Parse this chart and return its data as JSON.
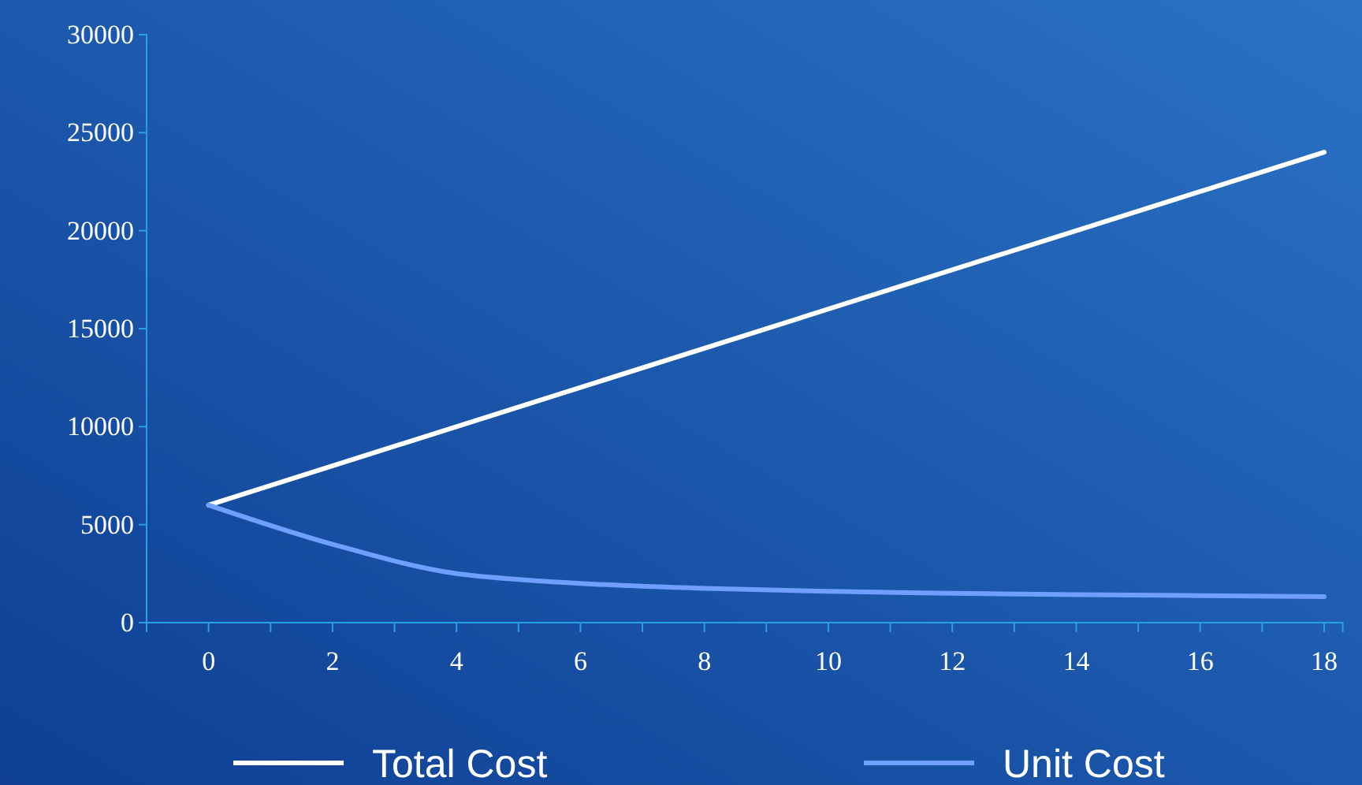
{
  "chart_data": {
    "type": "line",
    "x": [
      0,
      2,
      4,
      5,
      6,
      8,
      10,
      12,
      14,
      16,
      18
    ],
    "series": [
      {
        "name": "Total Cost",
        "color": "#ffffff",
        "x": [
          0,
          18
        ],
        "values": [
          6000,
          24000
        ]
      },
      {
        "name": "Unit Cost",
        "color": "#6fa0ff",
        "values": [
          6000,
          4000,
          2500,
          2200,
          2000,
          1750,
          1600,
          1500,
          1430,
          1380,
          1330
        ]
      }
    ],
    "xlim": [
      -1,
      18.3
    ],
    "xticks": [
      {
        "value": -1,
        "label": null
      },
      0,
      {
        "value": 1,
        "label": null
      },
      2,
      {
        "value": 3,
        "label": null
      },
      4,
      {
        "value": 5,
        "label": null
      },
      6,
      {
        "value": 7,
        "label": null
      },
      8,
      {
        "value": 9,
        "label": null
      },
      10,
      {
        "value": 11,
        "label": null
      },
      12,
      {
        "value": 13,
        "label": null
      },
      14,
      {
        "value": 15,
        "label": null
      },
      16,
      {
        "value": 17,
        "label": null
      },
      18
    ],
    "ylim": [
      0,
      30000
    ],
    "yticks": [
      0,
      5000,
      10000,
      15000,
      20000,
      25000,
      30000
    ],
    "legend": "bottom",
    "line_style": "solid",
    "marker": "none"
  }
}
